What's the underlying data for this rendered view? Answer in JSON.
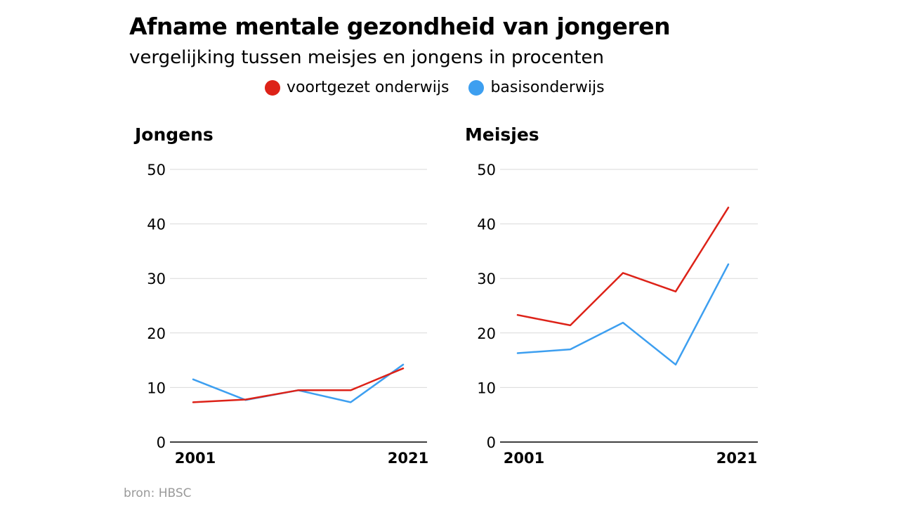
{
  "title": "Afname mentale gezondheid van jongeren",
  "subtitle": "vergelijking tussen meisjes en jongens in procenten",
  "source": "bron: HBSC",
  "colors": {
    "red": "#dd2218",
    "blue": "#3d9ff0"
  },
  "chart_data": [
    {
      "type": "line",
      "title": "Jongens",
      "x_tick_labels": [
        "2001",
        "2021"
      ],
      "y_ticks": [
        "0",
        "10",
        "20",
        "30",
        "40",
        "50"
      ],
      "ylim": [
        0,
        50
      ],
      "grid": true,
      "legend": "top",
      "series": [
        {
          "name": "voortgezet onderwijs",
          "color": "#dd2218",
          "values": [
            7.3,
            7.8,
            9.5,
            9.5,
            13.5
          ]
        },
        {
          "name": "basisonderwijs",
          "color": "#3d9ff0",
          "values": [
            11.5,
            7.7,
            9.5,
            7.3,
            14.2
          ]
        }
      ]
    },
    {
      "type": "line",
      "title": "Meisjes",
      "x_tick_labels": [
        "2001",
        "2021"
      ],
      "y_ticks": [
        "0",
        "10",
        "20",
        "30",
        "40",
        "50"
      ],
      "ylim": [
        0,
        50
      ],
      "grid": true,
      "legend": "top",
      "series": [
        {
          "name": "voortgezet onderwijs",
          "color": "#dd2218",
          "values": [
            23.3,
            21.4,
            31.0,
            27.6,
            43.0
          ]
        },
        {
          "name": "basisonderwijs",
          "color": "#3d9ff0",
          "values": [
            16.3,
            17.0,
            21.9,
            14.2,
            32.6
          ]
        }
      ]
    }
  ]
}
